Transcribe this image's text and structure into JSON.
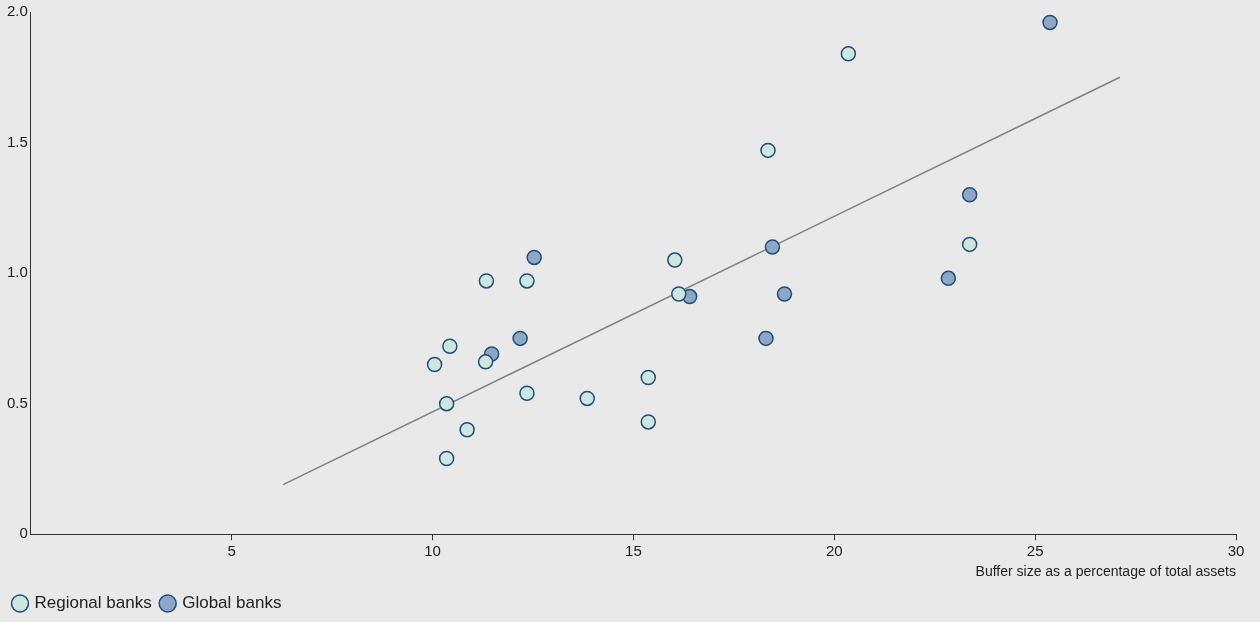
{
  "chart_data": {
    "type": "scatter",
    "xlabel": "Buffer size as a percentage of total assets",
    "xlim": [
      0,
      30
    ],
    "xticks": [
      5,
      10,
      15,
      20,
      25,
      30
    ],
    "ylim": [
      0,
      2
    ],
    "yticks": [
      0,
      {
        "value": 0.5,
        "label": "0.5"
      },
      {
        "value": 1,
        "label": "1.0"
      },
      {
        "value": 1.5,
        "label": "1.5"
      },
      {
        "value": 2,
        "label": "2.0"
      }
    ],
    "grid": false,
    "legend": "bottom left",
    "series": [
      {
        "name": "Regional banks",
        "color": "#cde6df",
        "marker": "circle",
        "x": [
          10.05,
          10.43,
          10.35,
          10.86,
          10.35,
          11.34,
          11.32,
          12.35,
          12.35,
          13.85,
          15.37,
          15.37,
          16.03,
          16.13,
          18.35,
          20.35,
          23.37
        ],
        "values": [
          0.65,
          0.72,
          0.5,
          0.4,
          0.29,
          0.97,
          0.66,
          0.97,
          0.54,
          0.52,
          0.6,
          0.43,
          1.05,
          0.92,
          1.47,
          1.84,
          1.11
        ]
      },
      {
        "name": "Global banks",
        "color": "#8ea7c6",
        "marker": "circle",
        "x": [
          11.47,
          12.18,
          12.53,
          16.4,
          18.3,
          18.46,
          18.76,
          22.84,
          23.37,
          25.37
        ],
        "values": [
          0.69,
          0.75,
          1.06,
          0.91,
          0.75,
          1.1,
          0.92,
          0.98,
          1.3,
          1.96
        ]
      },
      {
        "type": "line",
        "color": "#808080",
        "x": [
          6.28,
          27.11
        ],
        "values": [
          0.19,
          1.75
        ]
      }
    ]
  }
}
